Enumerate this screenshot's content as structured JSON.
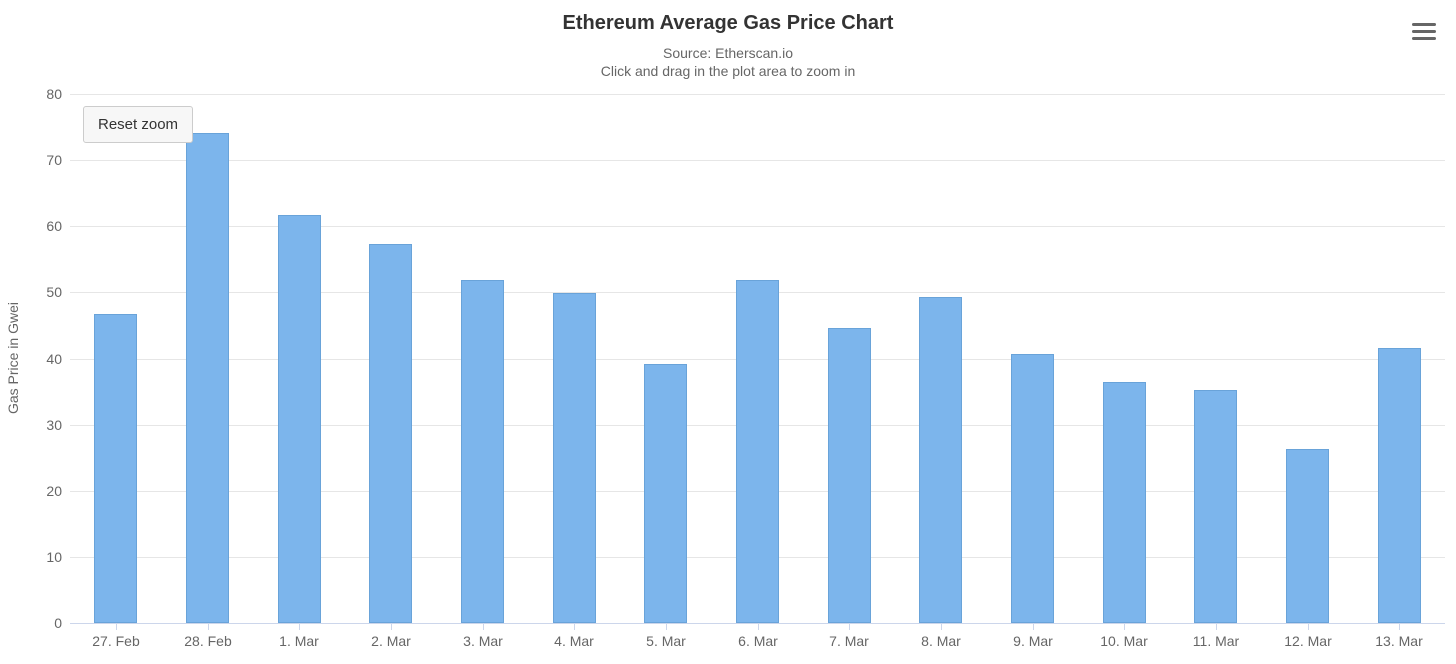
{
  "header": {
    "title": "Ethereum Average Gas Price Chart",
    "subtitle_source": "Source: Etherscan.io",
    "subtitle_hint": "Click and drag in the plot area to zoom in"
  },
  "toolbar": {
    "reset_zoom_label": "Reset zoom",
    "context_menu_icon": "hamburger-icon"
  },
  "colors": {
    "bar_fill": "#7cb5ec",
    "bar_border": "#69a3d9",
    "gridline": "#e6e6e6",
    "axis_line": "#ccd6eb",
    "muted_text": "#666666",
    "title_text": "#333333",
    "button_bg": "#f7f7f7",
    "button_border": "#cccccc"
  },
  "chart_data": {
    "type": "bar",
    "title": "Ethereum Average Gas Price Chart",
    "subtitle": "Source: Etherscan.io",
    "annotation": "Click and drag in the plot area to zoom in",
    "categories": [
      "27. Feb",
      "28. Feb",
      "1. Mar",
      "2. Mar",
      "3. Mar",
      "4. Mar",
      "5. Mar",
      "6. Mar",
      "7. Mar",
      "8. Mar",
      "9. Mar",
      "10. Mar",
      "11. Mar",
      "12. Mar",
      "13. Mar"
    ],
    "values": [
      46.8,
      74.1,
      61.7,
      57.3,
      51.8,
      49.9,
      39.1,
      51.8,
      44.6,
      49.3,
      40.7,
      36.5,
      35.3,
      26.3,
      41.6
    ],
    "xlabel": "",
    "ylabel": "Gas Price in Gwei",
    "ylim": [
      0,
      80
    ],
    "yticks": [
      0,
      10,
      20,
      30,
      40,
      50,
      60,
      70,
      80
    ],
    "grid": true,
    "legend": false,
    "legend_position": "none"
  }
}
